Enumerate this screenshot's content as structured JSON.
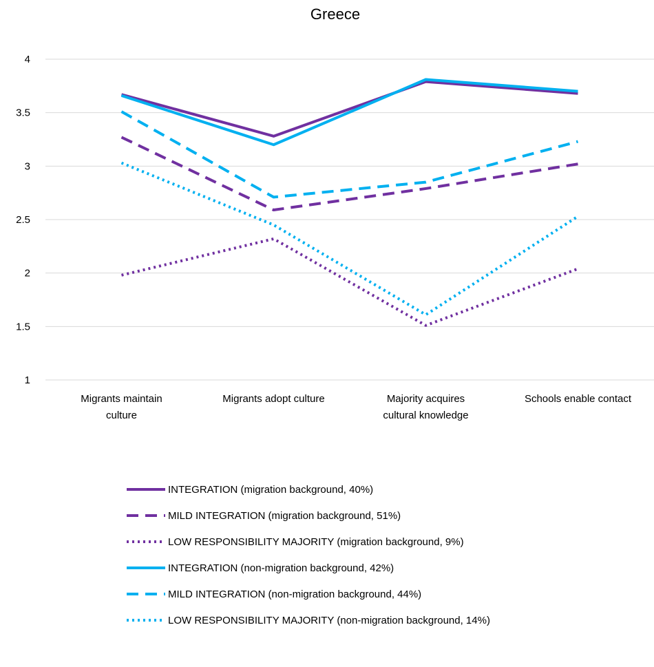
{
  "chart_data": {
    "type": "line",
    "title": "Greece",
    "categories": [
      [
        "Migrants maintain",
        "culture"
      ],
      [
        "Migrants adopt culture"
      ],
      [
        "Majority acquires",
        "cultural knowledge"
      ],
      [
        "Schools enable contact"
      ]
    ],
    "ylim": [
      1,
      4
    ],
    "yticks": [
      "1",
      "1.5",
      "2",
      "2.5",
      "3",
      "3.5",
      "4"
    ],
    "grid": true,
    "legend_position": "bottom",
    "series": [
      {
        "name": "INTEGRATION (migration background, 40%)",
        "values": [
          3.67,
          3.28,
          3.79,
          3.68
        ],
        "color": "#7030a0",
        "style": "solid"
      },
      {
        "name": "MILD INTEGRATION (migration background, 51%)",
        "values": [
          3.27,
          2.59,
          2.79,
          3.02
        ],
        "color": "#7030a0",
        "style": "dashed"
      },
      {
        "name": "LOW RESPONSIBILITY MAJORITY (migration background, 9%)",
        "values": [
          1.98,
          2.32,
          1.51,
          2.04
        ],
        "color": "#7030a0",
        "style": "dotted"
      },
      {
        "name": "INTEGRATION (non-migration background, 42%)",
        "values": [
          3.66,
          3.2,
          3.81,
          3.7
        ],
        "color": "#00b0f0",
        "style": "solid"
      },
      {
        "name": "MILD INTEGRATION (non-migration background, 44%)",
        "values": [
          3.51,
          2.71,
          2.85,
          3.23
        ],
        "color": "#00b0f0",
        "style": "dashed"
      },
      {
        "name": "LOW RESPONSIBILITY MAJORITY (non-migration background, 14%)",
        "values": [
          3.03,
          2.45,
          1.61,
          2.53
        ],
        "color": "#00b0f0",
        "style": "dotted"
      }
    ]
  }
}
